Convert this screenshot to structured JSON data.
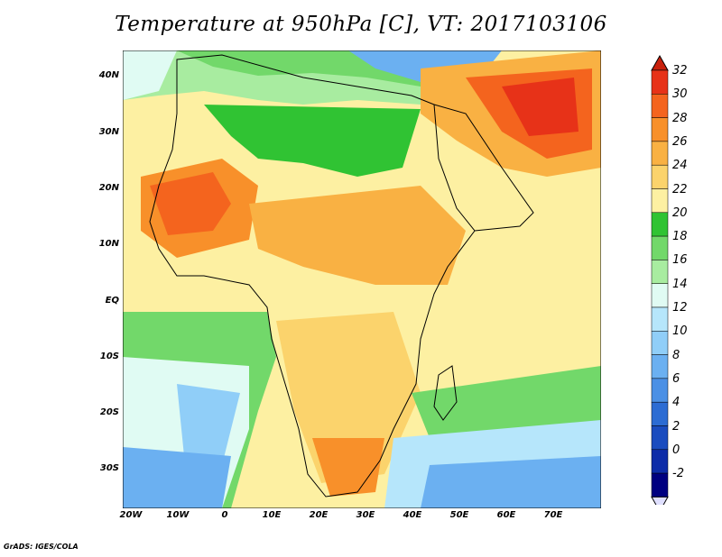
{
  "title": "Temperature at 950hPa [C], VT: 2017103106",
  "credit": "GrADS: IGES/COLA",
  "map": {
    "lat_labels": [
      "40N",
      "30N",
      "20N",
      "10N",
      "EQ",
      "10S",
      "20S",
      "30S"
    ],
    "lon_labels": [
      "20W",
      "10W",
      "0",
      "10E",
      "20E",
      "30E",
      "40E",
      "50E",
      "60E",
      "70E"
    ]
  },
  "colorbar": {
    "labels": [
      "32",
      "30",
      "28",
      "26",
      "24",
      "22",
      "20",
      "18",
      "16",
      "14",
      "12",
      "10",
      "8",
      "6",
      "4",
      "2",
      "0",
      "-2"
    ],
    "colors": [
      "#e73218",
      "#f4641e",
      "#f8902a",
      "#f9b143",
      "#fbd36c",
      "#fdf0a2",
      "#30c333",
      "#72d86a",
      "#a8eca0",
      "#e0fbf3",
      "#b6e6fb",
      "#90cef8",
      "#6bb0f1",
      "#4b90e5",
      "#2c6cd3",
      "#1a4cbf",
      "#0d2ca8",
      "#000080"
    ],
    "top_arrow_color": "#c8200c",
    "bottom_arrow_color": "#e0e0ff"
  }
}
